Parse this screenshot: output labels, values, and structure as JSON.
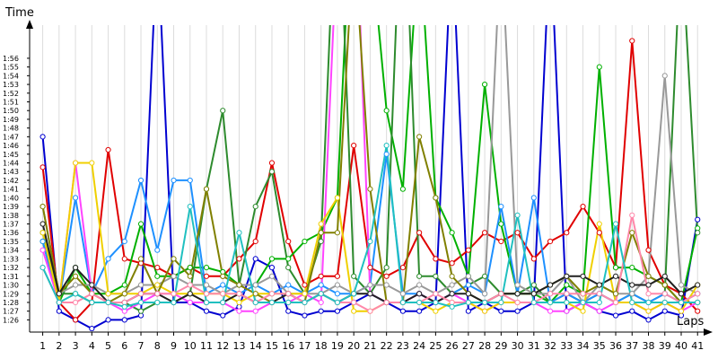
{
  "chart_data": {
    "type": "line",
    "x_label": "Laps",
    "y_label": "Time",
    "x": [
      1,
      2,
      3,
      4,
      5,
      6,
      7,
      8,
      9,
      10,
      11,
      12,
      13,
      14,
      15,
      16,
      17,
      18,
      19,
      20,
      21,
      22,
      23,
      24,
      25,
      26,
      27,
      28,
      29,
      30,
      31,
      32,
      33,
      34,
      35,
      36,
      37,
      38,
      39,
      40,
      41
    ],
    "xlim": [
      0.2,
      41.7
    ],
    "xticks": [
      1,
      2,
      3,
      4,
      5,
      6,
      7,
      8,
      9,
      10,
      11,
      12,
      13,
      14,
      15,
      16,
      17,
      18,
      19,
      20,
      21,
      22,
      23,
      24,
      25,
      26,
      27,
      28,
      29,
      30,
      31,
      32,
      33,
      34,
      35,
      36,
      37,
      38,
      39,
      40,
      41
    ],
    "ylim": [
      84.6,
      119.8
    ],
    "yticks": [
      {
        "value": 86,
        "label": "1:26"
      },
      {
        "value": 87,
        "label": "1:27"
      },
      {
        "value": 88,
        "label": "1:28"
      },
      {
        "value": 89,
        "label": "1:29"
      },
      {
        "value": 90,
        "label": "1:30"
      },
      {
        "value": 91,
        "label": "1:31"
      },
      {
        "value": 92,
        "label": "1:32"
      },
      {
        "value": 93,
        "label": "1:33"
      },
      {
        "value": 94,
        "label": "1:34"
      },
      {
        "value": 95,
        "label": "1:35"
      },
      {
        "value": 96,
        "label": "1:36"
      },
      {
        "value": 97,
        "label": "1:37"
      },
      {
        "value": 98,
        "label": "1:38"
      },
      {
        "value": 99,
        "label": "1:39"
      },
      {
        "value": 100,
        "label": "1:40"
      },
      {
        "value": 101,
        "label": "1:41"
      },
      {
        "value": 102,
        "label": "1:42"
      },
      {
        "value": 103,
        "label": "1:43"
      },
      {
        "value": 104,
        "label": "1:44"
      },
      {
        "value": 105,
        "label": "1:45"
      },
      {
        "value": 106,
        "label": "1:46"
      },
      {
        "value": 107,
        "label": "1:47"
      },
      {
        "value": 108,
        "label": "1:48"
      },
      {
        "value": 109,
        "label": "1:49"
      },
      {
        "value": 110,
        "label": "1:50"
      },
      {
        "value": 111,
        "label": "1:51"
      },
      {
        "value": 112,
        "label": "1:52"
      },
      {
        "value": 113,
        "label": "1:53"
      },
      {
        "value": 114,
        "label": "1:54"
      },
      {
        "value": 115,
        "label": "1:55"
      },
      {
        "value": 116,
        "label": "1:56"
      }
    ],
    "grid": {
      "x": true,
      "y": false
    },
    "series": [
      {
        "color": "#0000d0",
        "values": [
          107,
          87,
          86,
          85,
          86,
          86,
          86.5,
          130,
          88,
          88,
          87,
          86.5,
          87.5,
          93,
          92,
          87,
          86.5,
          87,
          87,
          88,
          89,
          88,
          87,
          87,
          88,
          130,
          87,
          88,
          87,
          87,
          88,
          130,
          87,
          88,
          87,
          86.5,
          87,
          86,
          87,
          86.5,
          97.5
        ]
      },
      {
        "color": "#e00000",
        "values": [
          103.5,
          88,
          86,
          88,
          105.5,
          93,
          92.5,
          92,
          91,
          92,
          91,
          91,
          93,
          95,
          104,
          95,
          90,
          91,
          91,
          106,
          92,
          91,
          92,
          96,
          93,
          92.5,
          94,
          96,
          95,
          96,
          93,
          95,
          96,
          99,
          96,
          92,
          118,
          94,
          90,
          89,
          87
        ]
      },
      {
        "color": "#00b000",
        "values": [
          95,
          88,
          92,
          89,
          89,
          90,
          97,
          91,
          91,
          92,
          92,
          91.5,
          90,
          90,
          93,
          93,
          95,
          96,
          100,
          140,
          130,
          110,
          101,
          130,
          100,
          96,
          91,
          113,
          97,
          89,
          89,
          88,
          90,
          89,
          115,
          92,
          92,
          91,
          90,
          88,
          96.5
        ]
      },
      {
        "color": "#2e8b2e",
        "values": [
          96,
          89,
          89,
          88,
          88,
          88,
          87,
          88,
          88,
          89,
          101,
          110,
          90,
          99,
          103,
          92,
          89,
          95,
          140,
          91,
          89,
          92,
          140,
          91,
          91,
          89,
          90,
          91,
          89,
          89,
          90,
          88,
          89,
          88,
          89,
          88,
          89,
          88,
          89,
          130,
          96
        ]
      },
      {
        "color": "#1e90ff",
        "values": [
          95,
          88,
          100,
          89,
          93,
          95,
          102,
          94,
          102,
          102,
          89,
          90,
          89,
          90,
          89,
          90,
          89,
          90,
          89,
          89,
          90,
          105,
          89,
          89,
          88,
          89,
          90,
          89,
          99,
          89,
          100,
          88,
          89,
          88,
          89,
          88,
          89,
          88,
          89,
          88,
          89
        ]
      },
      {
        "color": "#ff44ff",
        "values": [
          94,
          88,
          104,
          89,
          88,
          87,
          88,
          89,
          89,
          88,
          88,
          88,
          87,
          87,
          88,
          88,
          89,
          88,
          130,
          140,
          89,
          88,
          88,
          89,
          88,
          89,
          88,
          87,
          88,
          88,
          88,
          87,
          87,
          88,
          87,
          88,
          88,
          87,
          88,
          87,
          88
        ]
      },
      {
        "color": "#999999",
        "values": [
          99,
          89,
          90,
          90,
          89,
          89,
          90,
          90,
          91,
          90,
          90,
          89,
          90,
          90,
          91,
          89,
          89,
          89,
          90,
          89,
          90,
          90,
          89,
          90,
          89,
          90,
          91,
          89,
          130,
          90,
          89,
          89,
          91,
          88,
          90,
          89,
          89,
          91,
          114,
          90,
          89
        ]
      },
      {
        "color": "#f0d000",
        "values": [
          96,
          88,
          104,
          104,
          89,
          89,
          89,
          90,
          89,
          89,
          89,
          89,
          88,
          89,
          89,
          89,
          89,
          97,
          100,
          87,
          87,
          88,
          88,
          88,
          87,
          88,
          88,
          87,
          88,
          88,
          88,
          88,
          88,
          87,
          97,
          88,
          88,
          87,
          88,
          87,
          90
        ]
      },
      {
        "color": "#808000",
        "values": [
          99,
          89,
          91,
          89,
          88,
          89,
          93,
          89,
          93,
          91,
          101,
          91,
          90,
          89,
          88,
          88,
          88,
          96,
          96,
          130,
          101,
          88,
          88,
          107,
          100,
          91,
          89,
          88,
          89,
          89,
          89,
          90,
          91,
          89,
          90,
          89,
          96,
          91,
          90,
          88,
          88
        ]
      },
      {
        "color": "#202020",
        "values": [
          97,
          89,
          92,
          90,
          88,
          88,
          89,
          89,
          88,
          89,
          88,
          88,
          89,
          88,
          88,
          89,
          88,
          89,
          88,
          89,
          89,
          88,
          88,
          89,
          88,
          89,
          89,
          88,
          89,
          89,
          89,
          90,
          91,
          91,
          90,
          91,
          90,
          90,
          91,
          89,
          90
        ]
      },
      {
        "color": "#ff88aa",
        "values": [
          92,
          88,
          88,
          89,
          88,
          88,
          89,
          89,
          89,
          90,
          89,
          89,
          89,
          88,
          89,
          89,
          88,
          89,
          88,
          88,
          87,
          88,
          88,
          88,
          89,
          88,
          88,
          88,
          89,
          88,
          88,
          89,
          89,
          89,
          89,
          88,
          98,
          89,
          89,
          88,
          89
        ]
      },
      {
        "color": "#20c0c0",
        "values": [
          92,
          88,
          89,
          88,
          88,
          87.5,
          88,
          88,
          88,
          99,
          88,
          88,
          96,
          88,
          88,
          88,
          88,
          89,
          88,
          89,
          95,
          106,
          88,
          88,
          88,
          87.5,
          88,
          88,
          88,
          98,
          88,
          88,
          88,
          88,
          88,
          97,
          88,
          88,
          88,
          88,
          88
        ]
      }
    ]
  }
}
